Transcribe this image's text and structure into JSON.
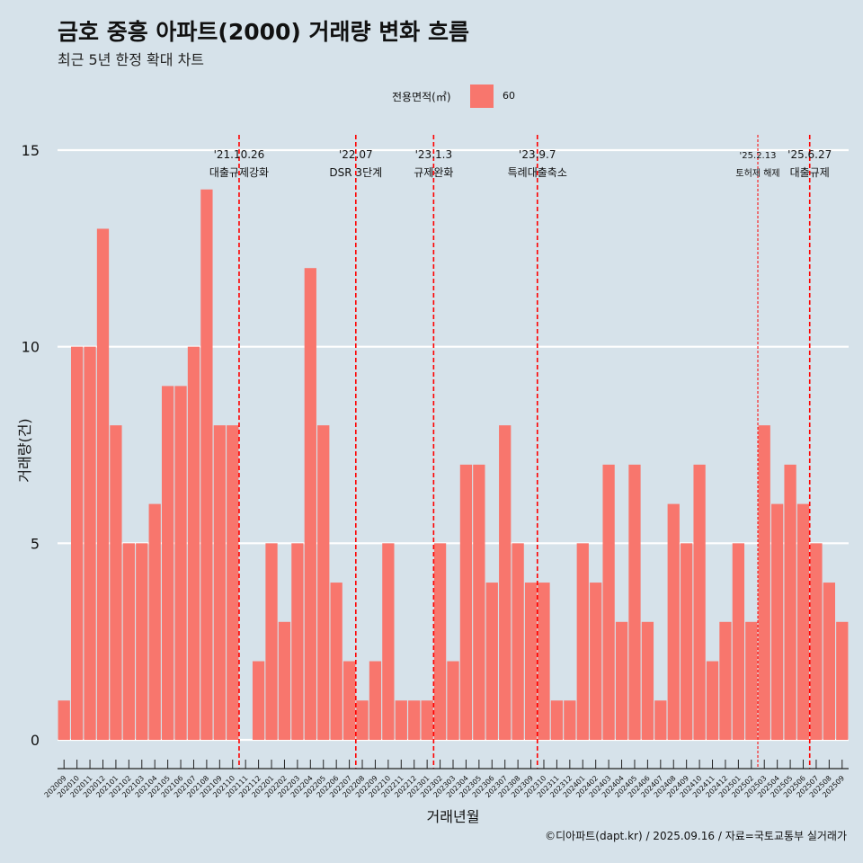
{
  "title": "금호 중흥 아파트(2000) 거래량 변화 흐름",
  "subtitle": "최근 5년 한정 확대 차트",
  "legend": {
    "title": "전용면적(㎡)",
    "label": "60",
    "color": "#f8766d"
  },
  "caption": "©디아파트(dapt.kr) / 2025.09.16 / 자료=국토교통부 실거래가",
  "chart_data": {
    "type": "bar",
    "xlabel": "거래년월",
    "ylabel": "거래량(건)",
    "ylim": [
      0,
      15
    ],
    "yticks": [
      0,
      5,
      10,
      15
    ],
    "grid": "horizontal",
    "legend_position": "top",
    "bar_color": "#f8766d",
    "categories": [
      "202009",
      "202010",
      "202011",
      "202012",
      "202101",
      "202102",
      "202103",
      "202104",
      "202105",
      "202106",
      "202107",
      "202108",
      "202109",
      "202110",
      "202111",
      "202112",
      "202201",
      "202202",
      "202203",
      "202204",
      "202205",
      "202206",
      "202207",
      "202208",
      "202209",
      "202210",
      "202211",
      "202212",
      "202301",
      "202302",
      "202303",
      "202304",
      "202305",
      "202306",
      "202307",
      "202308",
      "202309",
      "202310",
      "202311",
      "202312",
      "202401",
      "202402",
      "202403",
      "202404",
      "202405",
      "202406",
      "202407",
      "202408",
      "202409",
      "202410",
      "202411",
      "202412",
      "202501",
      "202502",
      "202503",
      "202504",
      "202505",
      "202506",
      "202507",
      "202508",
      "202509"
    ],
    "series": [
      {
        "values": [
          1,
          10,
          10,
          13,
          8,
          5,
          5,
          6,
          9,
          9,
          10,
          14,
          8,
          8,
          0,
          2,
          5,
          3,
          5,
          12,
          8,
          4,
          2,
          1,
          2,
          5,
          1,
          1,
          1,
          5,
          2,
          7,
          7,
          4,
          8,
          5,
          4,
          4,
          1,
          1,
          5,
          4,
          7,
          3,
          7,
          3,
          1,
          6,
          5,
          7,
          2,
          3,
          5,
          3,
          8,
          6,
          7,
          6,
          5,
          4,
          3
        ]
      }
    ],
    "annotations": [
      {
        "category": "202110",
        "date": "'21.10.26",
        "text": "대출규제강화",
        "style": "dashed"
      },
      {
        "category": "202207",
        "date": "'22.07",
        "text": "DSR 3단계",
        "style": "dashed"
      },
      {
        "category": "202301",
        "date": "'23.1.3",
        "text": "규제완화",
        "style": "dashed"
      },
      {
        "category": "202309",
        "date": "'23.9.7",
        "text": "특례대출축소",
        "style": "dashed"
      },
      {
        "category": "202502",
        "date": "'25.2.13",
        "text": "토허제 해제",
        "style": "thin"
      },
      {
        "category": "202506",
        "date": "'25.6.27",
        "text": "대출규제",
        "style": "dashed"
      }
    ]
  }
}
